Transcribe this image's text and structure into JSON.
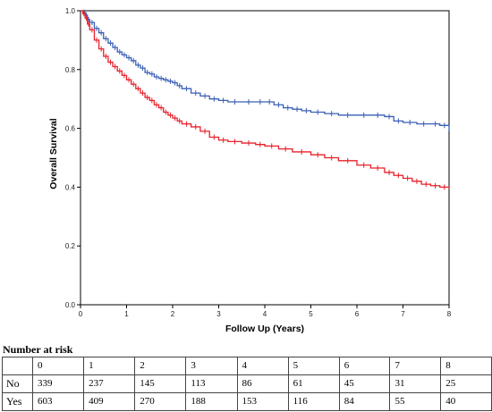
{
  "chart_data": {
    "type": "line",
    "title": "",
    "xlabel": "Follow Up (Years)",
    "ylabel": "Overall Survival",
    "xlim": [
      0,
      8
    ],
    "ylim": [
      0,
      1
    ],
    "x_ticks": [
      "0",
      "1",
      "2",
      "3",
      "4",
      "5",
      "6",
      "7",
      "8"
    ],
    "y_ticks": [
      "0.0",
      "0.2",
      "0.4",
      "0.6",
      "0.8",
      "1.0"
    ],
    "grid": false,
    "series": [
      {
        "color": "#3a5fb5",
        "x": [
          0,
          0.05,
          0.1,
          0.15,
          0.2,
          0.3,
          0.4,
          0.5,
          0.6,
          0.7,
          0.8,
          0.9,
          1.0,
          1.1,
          1.2,
          1.3,
          1.4,
          1.5,
          1.6,
          1.7,
          1.8,
          1.9,
          2.0,
          2.1,
          2.2,
          2.4,
          2.6,
          2.8,
          3.0,
          3.2,
          3.5,
          3.8,
          4.0,
          4.2,
          4.4,
          4.6,
          4.8,
          5.0,
          5.3,
          5.6,
          6.0,
          6.3,
          6.6,
          6.8,
          7.0,
          7.3,
          7.6,
          7.8,
          8.0
        ],
        "y": [
          1.0,
          0.995,
          0.985,
          0.97,
          0.96,
          0.94,
          0.925,
          0.905,
          0.89,
          0.875,
          0.86,
          0.85,
          0.84,
          0.83,
          0.815,
          0.805,
          0.79,
          0.785,
          0.775,
          0.77,
          0.765,
          0.76,
          0.755,
          0.745,
          0.735,
          0.72,
          0.71,
          0.7,
          0.695,
          0.69,
          0.69,
          0.69,
          0.69,
          0.68,
          0.67,
          0.665,
          0.66,
          0.655,
          0.65,
          0.645,
          0.645,
          0.645,
          0.64,
          0.625,
          0.62,
          0.615,
          0.615,
          0.61,
          0.59
        ]
      },
      {
        "color": "#e8202a",
        "x": [
          0,
          0.05,
          0.1,
          0.15,
          0.2,
          0.3,
          0.4,
          0.5,
          0.6,
          0.7,
          0.8,
          0.9,
          1.0,
          1.1,
          1.2,
          1.3,
          1.4,
          1.5,
          1.6,
          1.7,
          1.8,
          1.9,
          2.0,
          2.1,
          2.2,
          2.4,
          2.6,
          2.8,
          3.0,
          3.2,
          3.5,
          3.8,
          4.0,
          4.3,
          4.6,
          5.0,
          5.3,
          5.6,
          6.0,
          6.3,
          6.6,
          6.8,
          7.0,
          7.2,
          7.4,
          7.6,
          7.8,
          8.0
        ],
        "y": [
          1.0,
          0.99,
          0.975,
          0.955,
          0.935,
          0.9,
          0.87,
          0.845,
          0.825,
          0.81,
          0.795,
          0.78,
          0.765,
          0.75,
          0.735,
          0.72,
          0.705,
          0.695,
          0.68,
          0.67,
          0.655,
          0.645,
          0.635,
          0.625,
          0.615,
          0.605,
          0.59,
          0.57,
          0.56,
          0.555,
          0.55,
          0.545,
          0.54,
          0.53,
          0.52,
          0.51,
          0.5,
          0.49,
          0.475,
          0.465,
          0.45,
          0.44,
          0.43,
          0.42,
          0.41,
          0.405,
          0.4,
          0.395
        ]
      }
    ]
  },
  "risk_table": {
    "title": "Number at risk",
    "header": [
      "",
      "0",
      "1",
      "2",
      "3",
      "4",
      "5",
      "6",
      "7",
      "8"
    ],
    "rows": [
      {
        "label": "No",
        "values": [
          "339",
          "237",
          "145",
          "113",
          "86",
          "61",
          "45",
          "31",
          "25"
        ]
      },
      {
        "label": "Yes",
        "values": [
          "603",
          "409",
          "270",
          "188",
          "153",
          "116",
          "84",
          "55",
          "40"
        ]
      }
    ]
  }
}
